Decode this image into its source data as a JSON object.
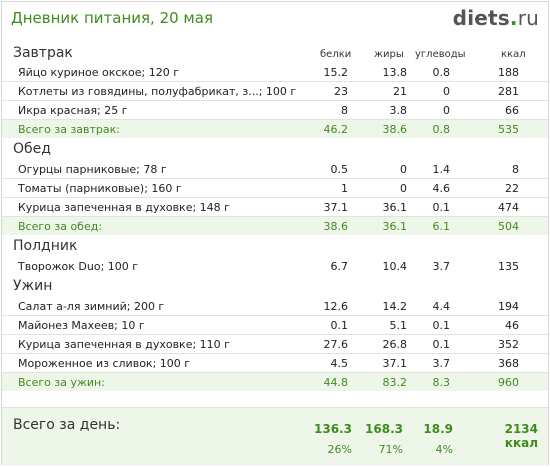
{
  "header": {
    "title": "Дневник питания, 20 мая",
    "logo_part1": "diets",
    "logo_part2": "ru"
  },
  "columns": {
    "section_first": "Завтрак",
    "protein": "белки",
    "fat": "жиры",
    "carbs": "углеводы",
    "kcal": "ккал"
  },
  "meals": [
    {
      "title": "Завтрак",
      "items": [
        {
          "name": "Яйцо куриное окское; 120 г",
          "p": "15.2",
          "f": "13.8",
          "c": "0.8",
          "k": "188"
        },
        {
          "name": "Котлеты из говядины, полуфабрикат, з...; 100 г",
          "p": "23",
          "f": "21",
          "c": "0",
          "k": "281"
        },
        {
          "name": "Икра красная; 25 г",
          "p": "8",
          "f": "3.8",
          "c": "0",
          "k": "66"
        }
      ],
      "total": {
        "label": "Всего за завтрак:",
        "p": "46.2",
        "f": "38.6",
        "c": "0.8",
        "k": "535"
      }
    },
    {
      "title": "Обед",
      "items": [
        {
          "name": "Огурцы парниковые; 78 г",
          "p": "0.5",
          "f": "0",
          "c": "1.4",
          "k": "8"
        },
        {
          "name": "Томаты (парниковые); 160 г",
          "p": "1",
          "f": "0",
          "c": "4.6",
          "k": "22"
        },
        {
          "name": "Курица запеченная в духовке; 148 г",
          "p": "37.1",
          "f": "36.1",
          "c": "0.1",
          "k": "474"
        }
      ],
      "total": {
        "label": "Всего за обед:",
        "p": "38.6",
        "f": "36.1",
        "c": "6.1",
        "k": "504"
      }
    },
    {
      "title": "Полдник",
      "items": [
        {
          "name": "Творожок Duo; 100 г",
          "p": "6.7",
          "f": "10.4",
          "c": "3.7",
          "k": "135"
        }
      ],
      "total": null
    },
    {
      "title": "Ужин",
      "items": [
        {
          "name": "Салат а-ля зимний; 200 г",
          "p": "12.6",
          "f": "14.2",
          "c": "4.4",
          "k": "194"
        },
        {
          "name": "Майонез Махеев; 10 г",
          "p": "0.1",
          "f": "5.1",
          "c": "0.1",
          "k": "46"
        },
        {
          "name": "Курица запеченная в духовке; 110 г",
          "p": "27.6",
          "f": "26.8",
          "c": "0.1",
          "k": "352"
        },
        {
          "name": "Мороженное из сливок; 100 г",
          "p": "4.5",
          "f": "37.1",
          "c": "3.7",
          "k": "368"
        }
      ],
      "total": {
        "label": "Всего за ужин:",
        "p": "44.8",
        "f": "83.2",
        "c": "8.3",
        "k": "960"
      }
    }
  ],
  "day_total": {
    "label": "Всего за день:",
    "protein": "136.3",
    "fat": "168.3",
    "carbs": "18.9",
    "kcal": "2134 ккал",
    "protein_pct": "26%",
    "fat_pct": "71%",
    "carbs_pct": "4%"
  }
}
